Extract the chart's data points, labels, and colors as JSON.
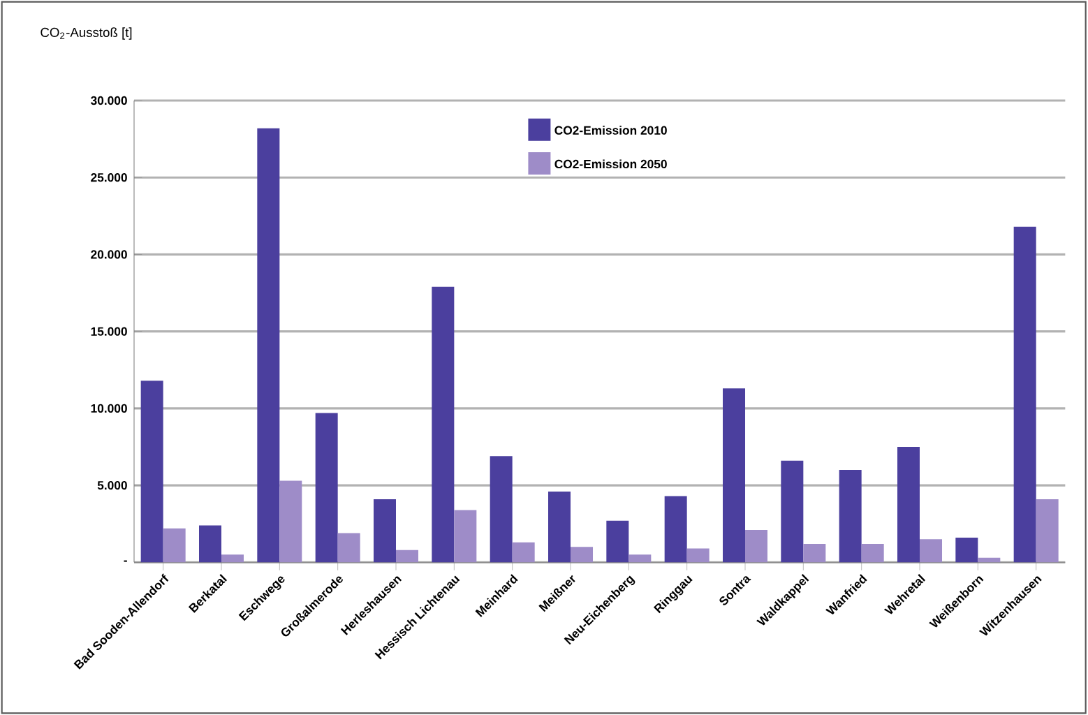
{
  "chart_data": {
    "type": "bar",
    "ylabel": "CO$_{2}$-Ausstoß [t]",
    "categories": [
      "Bad Sooden-Allendorf",
      "Berkatal",
      "Eschwege",
      "Großalmerode",
      "Herleshausen",
      "Hessisch Lichtenau",
      "Meinhard",
      "Meißner",
      "Neu-Eichenberg",
      "Ringgau",
      "Sontra",
      "Waldkappel",
      "Wanfried",
      "Wehretal",
      "Weißenborn",
      "Witzenhausen"
    ],
    "series": [
      {
        "name": "CO2-Emission 2010",
        "color": "#4b3f9e",
        "values": [
          11800,
          2400,
          28200,
          9700,
          4100,
          17900,
          6900,
          4600,
          2700,
          4300,
          11300,
          6600,
          6000,
          7500,
          1600,
          21800
        ]
      },
      {
        "name": "CO2-Emission 2050",
        "color": "#9e8cc8",
        "values": [
          2200,
          500,
          5300,
          1900,
          800,
          3400,
          1300,
          1000,
          500,
          900,
          2100,
          1200,
          1200,
          1500,
          300,
          4100
        ]
      }
    ],
    "ylim": [
      0,
      30000
    ],
    "yticks": [
      {
        "value": 0,
        "label": "-"
      },
      {
        "value": 5000,
        "label": "5.000"
      },
      {
        "value": 10000,
        "label": "10.000"
      },
      {
        "value": 15000,
        "label": "15.000"
      },
      {
        "value": 20000,
        "label": "20.000"
      },
      {
        "value": 25000,
        "label": "25.000"
      },
      {
        "value": 30000,
        "label": "30.000"
      }
    ],
    "grid": "y",
    "legend": "top"
  }
}
